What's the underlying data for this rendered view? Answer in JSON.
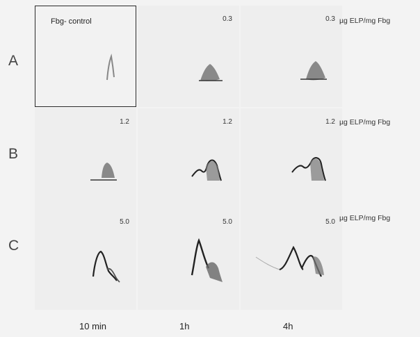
{
  "control_label": "Fbg- control",
  "rows": [
    {
      "label": "A",
      "concentration": "0.3",
      "unit": "µg ELP/mg Fbg"
    },
    {
      "label": "B",
      "concentration": "1.2",
      "unit": "µg ELP/mg Fbg"
    },
    {
      "label": "C",
      "concentration": "5.0",
      "unit": "µg ELP/mg Fbg"
    }
  ],
  "times": [
    "10 min",
    "1h",
    "4h"
  ]
}
